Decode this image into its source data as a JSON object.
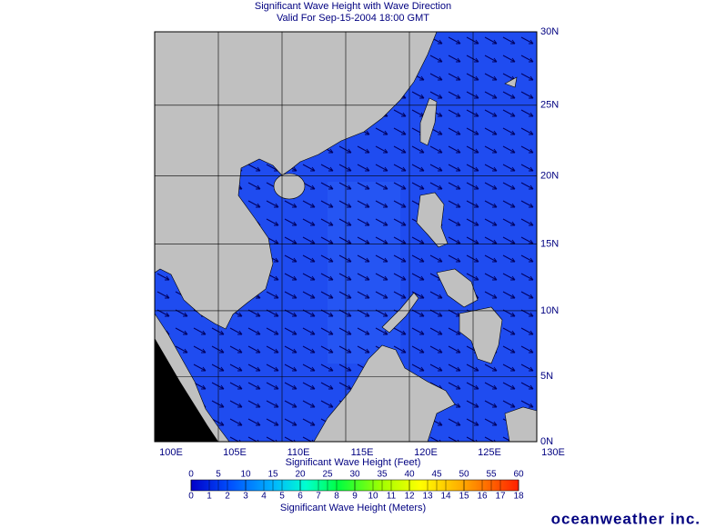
{
  "header": {
    "title": "Significant Wave Height with Wave Direction",
    "subtitle": "Valid For Sep-15-2004 18:00 GMT"
  },
  "map": {
    "lon_range": [
      100,
      130
    ],
    "lat_range": [
      0,
      30
    ],
    "lon_ticks": [
      {
        "value": 100,
        "label": "100E"
      },
      {
        "value": 105,
        "label": "105E"
      },
      {
        "value": 110,
        "label": "110E"
      },
      {
        "value": 115,
        "label": "115E"
      },
      {
        "value": 120,
        "label": "120E"
      },
      {
        "value": 125,
        "label": "125E"
      },
      {
        "value": 130,
        "label": "130E"
      }
    ],
    "lat_ticks": [
      {
        "value": 0,
        "label": "0N"
      },
      {
        "value": 5,
        "label": "5N"
      },
      {
        "value": 10,
        "label": "10N"
      },
      {
        "value": 15,
        "label": "15N"
      },
      {
        "value": 20,
        "label": "20N"
      },
      {
        "value": 25,
        "label": "25N"
      },
      {
        "value": 30,
        "label": "30N"
      }
    ]
  },
  "colorbar": {
    "feet": {
      "label": "Significant Wave Height (Feet)",
      "range": [
        0,
        60
      ],
      "ticks": [
        0,
        5,
        10,
        15,
        20,
        25,
        30,
        35,
        40,
        45,
        50,
        55,
        60
      ]
    },
    "meters": {
      "label": "Significant Wave Height (Meters)",
      "range": [
        0,
        18
      ],
      "ticks": [
        0,
        1,
        2,
        3,
        4,
        5,
        6,
        7,
        8,
        9,
        10,
        11,
        12,
        13,
        14,
        15,
        16,
        17,
        18
      ]
    }
  },
  "footer": {
    "logo": "oceanweather inc."
  }
}
